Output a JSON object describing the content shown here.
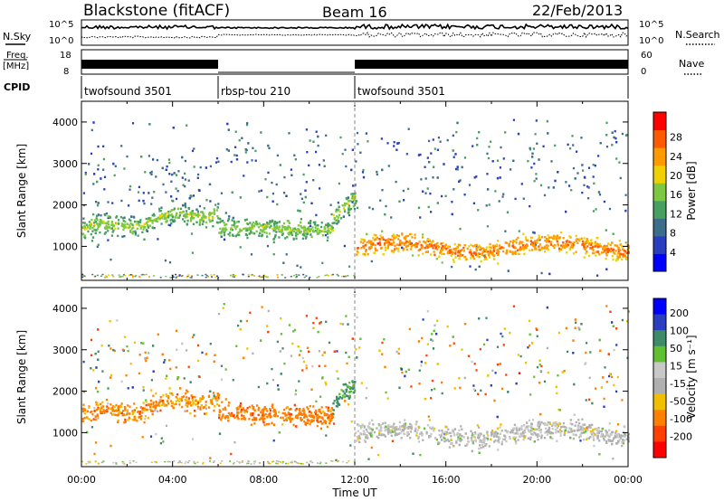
{
  "header": {
    "station": "Blackstone (fitACF)",
    "beam": "Beam 16",
    "date": "22/Feb/2013"
  },
  "aux_labels": {
    "nsky": "N.Sky",
    "freq_line1": "Freq.",
    "freq_line2": "[MHz]",
    "cpid": "CPID",
    "nsearch": "N.Search",
    "nave": "Nave",
    "noise_ticks_left": [
      "10^5",
      "10^0"
    ],
    "noise_ticks_right": [
      "10^5",
      "10^0"
    ],
    "freq_ticks_left": [
      "18",
      "8"
    ],
    "nave_ticks_right": [
      "60",
      "0"
    ]
  },
  "cpid_segments": [
    {
      "label": "twofsound 3501",
      "start_hour": 0,
      "end_hour": 6
    },
    {
      "label": "rbsp-tou 210",
      "start_hour": 6,
      "end_hour": 12
    },
    {
      "label": "twofsound 3501",
      "start_hour": 12,
      "end_hour": 24
    }
  ],
  "colors": {
    "power_scale": [
      "#0000ff",
      "#2a3fbf",
      "#3c6e8c",
      "#48a060",
      "#7cc840",
      "#f0d000",
      "#ff9a00",
      "#ff5a00",
      "#ff0000"
    ],
    "velocity_scale": [
      "#0000ff",
      "#2a3fbf",
      "#3c8c6a",
      "#60c030",
      "#c8c8c8",
      "#b0b0b0",
      "#f0c000",
      "#ff8000",
      "#ff4000",
      "#ff0000"
    ]
  },
  "chart_data": [
    {
      "type": "heatmap",
      "title": "Power",
      "xlabel": "",
      "ylabel": "Slant Range [km]",
      "xlim": [
        0,
        24
      ],
      "ylim": [
        180,
        4500
      ],
      "y_ticks": [
        1000,
        2000,
        3000,
        4000
      ],
      "colorbar_label": "Power [dB]",
      "colorbar_ticks": [
        "4",
        "8",
        "12",
        "16",
        "20",
        "24",
        "28"
      ],
      "colorbar_range": [
        0,
        30
      ],
      "features": [
        {
          "period": "00:00-06:00",
          "range_km": [
            1200,
            2000
          ],
          "value_db": 18
        },
        {
          "period": "06:00-11:00",
          "range_km": [
            1200,
            1800
          ],
          "value_db": 14
        },
        {
          "period": "11:00-12:00",
          "range_km": [
            1500,
            2400
          ],
          "value_db": 10
        },
        {
          "period": "12:00-24:00",
          "range_km": [
            700,
            1600
          ],
          "value_db": 22
        }
      ]
    },
    {
      "type": "heatmap",
      "title": "Velocity",
      "xlabel": "Time UT",
      "ylabel": "Slant Range [km]",
      "xlim": [
        0,
        24
      ],
      "ylim": [
        180,
        4500
      ],
      "y_ticks": [
        1000,
        2000,
        3000,
        4000
      ],
      "x_ticks": [
        "00:00",
        "04:00",
        "08:00",
        "12:00",
        "16:00",
        "20:00",
        "00:00"
      ],
      "colorbar_label": "Velocity [m s⁻¹]",
      "colorbar_ticks": [
        "200",
        "100",
        "50",
        "15",
        "-15",
        "-50",
        "-100",
        "-200"
      ],
      "colorbar_range": [
        -250,
        250
      ],
      "features": [
        {
          "period": "00:00-06:00",
          "range_km": [
            1200,
            2000
          ],
          "value_ms": -50
        },
        {
          "period": "06:00-11:00",
          "range_km": [
            1200,
            1800
          ],
          "value_ms": -80
        },
        {
          "period": "11:00-12:00",
          "range_km": [
            1500,
            2400
          ],
          "value_ms": 60
        },
        {
          "period": "12:00-24:00",
          "range_km": [
            700,
            1600
          ],
          "value_ms": 0
        }
      ]
    }
  ]
}
